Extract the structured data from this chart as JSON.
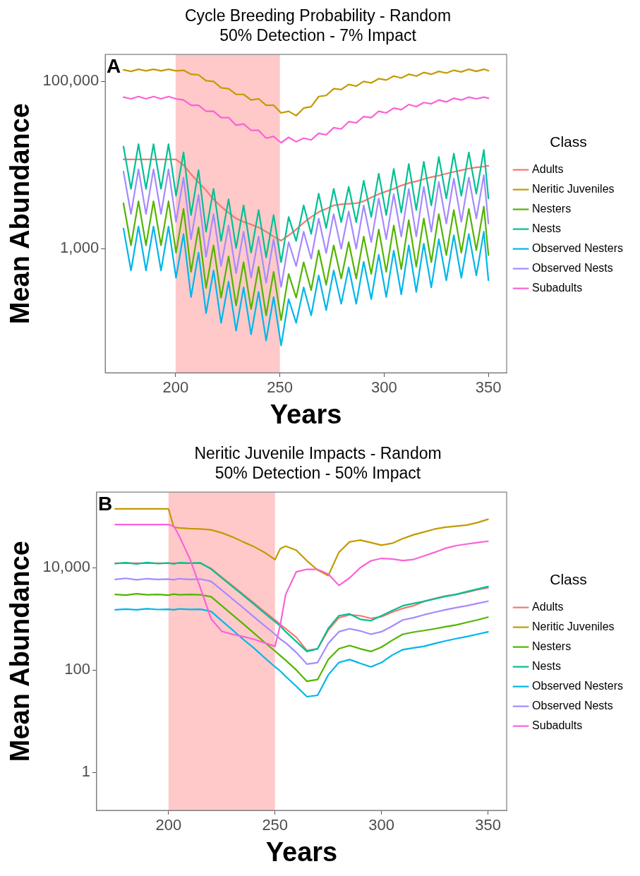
{
  "chart_data": [
    {
      "type": "line",
      "title": "Cycle Breeding Probability - Random",
      "subtitle": "50% Detection - 7% Impact",
      "xlabel": "Years",
      "ylabel": "Mean Abundance",
      "legend_title": "Class",
      "legend": "right",
      "log": "y",
      "marker": "none",
      "annotations": [
        "A"
      ],
      "xlim": [
        166.25,
        358.75
      ],
      "xticks": [
        200,
        250,
        300,
        350
      ],
      "ylim": [
        33,
        210000
      ],
      "yticks": [
        {
          "value": 1000,
          "label": "1,000"
        },
        {
          "value": 100000,
          "label": "100,000"
        }
      ],
      "bands": [
        {
          "axis": "x",
          "from": 200,
          "to": 250,
          "color": "#ffc9c9"
        }
      ],
      "x": [
        175,
        178.6,
        182.2,
        185.8,
        189.4,
        193,
        196.6,
        200.2,
        203.8,
        207.4,
        211,
        214.6,
        218.2,
        221.8,
        225.4,
        229,
        232.6,
        236.2,
        239.8,
        243.4,
        247,
        250.6,
        254.2,
        257.8,
        261.4,
        265,
        268.6,
        272.2,
        275.8,
        279.4,
        283,
        286.6,
        290.2,
        293.8,
        297.4,
        301,
        304.6,
        308.2,
        311.8,
        315.4,
        319,
        322.6,
        326.2,
        329.8,
        333.4,
        337,
        340.6,
        344.2,
        347.8,
        350
      ],
      "series": [
        {
          "name": "Adults",
          "color": "#f8766d",
          "values": [
            11700,
            11700,
            11700,
            11700,
            11700,
            11700,
            11700,
            11700,
            10000,
            7800,
            6200,
            5000,
            3900,
            3200,
            2700,
            2300,
            2100,
            1950,
            1800,
            1600,
            1400,
            1250,
            1450,
            1700,
            2050,
            2400,
            2750,
            3000,
            3300,
            3400,
            3450,
            3500,
            3700,
            4100,
            4500,
            4850,
            5200,
            5700,
            6100,
            6400,
            6800,
            7200,
            7500,
            7900,
            8300,
            8700,
            9100,
            9400,
            9600,
            9800
          ]
        },
        {
          "name": "Neritic Juveniles",
          "color": "#c49a00",
          "values": [
            138000,
            132000,
            140000,
            134000,
            140000,
            134000,
            140000,
            134000,
            136000,
            122000,
            120000,
            102000,
            100000,
            84000,
            82000,
            70000,
            70000,
            60000,
            62000,
            52000,
            52000,
            42000,
            44000,
            39000,
            48000,
            50000,
            66000,
            68000,
            82000,
            80000,
            92000,
            88000,
            100000,
            96000,
            108000,
            104000,
            116000,
            110000,
            122000,
            116000,
            128000,
            122000,
            132000,
            126000,
            136000,
            130000,
            140000,
            132000,
            140000,
            134000
          ]
        },
        {
          "name": "Nesters",
          "color": "#53b400",
          "values": [
            3500,
            1100,
            3700,
            1100,
            3700,
            1100,
            3700,
            900,
            3000,
            530,
            1800,
            340,
            1100,
            260,
            810,
            210,
            690,
            190,
            610,
            160,
            530,
            140,
            500,
            260,
            690,
            320,
            960,
            370,
            1100,
            440,
            1200,
            440,
            1400,
            500,
            1700,
            530,
            1900,
            570,
            2200,
            610,
            2300,
            690,
            2600,
            840,
            2900,
            900,
            3000,
            960,
            3200,
            840
          ]
        },
        {
          "name": "Nests",
          "color": "#00c094",
          "values": [
            16700,
            5200,
            17800,
            5200,
            17800,
            5200,
            17800,
            4300,
            14200,
            2530,
            8700,
            1600,
            5200,
            1240,
            3900,
            1020,
            3300,
            900,
            2900,
            790,
            2530,
            690,
            2400,
            1240,
            3300,
            1510,
            4550,
            1770,
            5200,
            2080,
            5500,
            2080,
            6500,
            2400,
            7900,
            2530,
            9000,
            2710,
            10300,
            2900,
            11000,
            3300,
            12500,
            4000,
            13700,
            4300,
            14200,
            4550,
            15200,
            4000
          ]
        },
        {
          "name": "Observed Nesters",
          "color": "#00b6eb",
          "values": [
            1750,
            550,
            1850,
            550,
            1850,
            550,
            1850,
            450,
            1500,
            265,
            900,
            170,
            550,
            130,
            405,
            105,
            345,
            95,
            305,
            80,
            265,
            70,
            250,
            130,
            345,
            160,
            480,
            185,
            550,
            220,
            600,
            220,
            700,
            250,
            850,
            265,
            950,
            285,
            1100,
            305,
            1150,
            345,
            1300,
            420,
            1450,
            450,
            1500,
            480,
            1600,
            420
          ]
        },
        {
          "name": "Observed Nests",
          "color": "#a58aff",
          "values": [
            8400,
            2600,
            8900,
            2600,
            8900,
            2600,
            8900,
            2100,
            7100,
            1300,
            4400,
            800,
            2600,
            620,
            1900,
            510,
            1600,
            450,
            1400,
            390,
            1300,
            350,
            1200,
            620,
            1600,
            760,
            2300,
            890,
            2600,
            1000,
            2800,
            1000,
            3300,
            1200,
            4000,
            1300,
            4500,
            1400,
            5200,
            1400,
            5500,
            1600,
            6300,
            2000,
            6900,
            2100,
            7100,
            2300,
            7600,
            2000
          ]
        },
        {
          "name": "Subadults",
          "color": "#fb61d7",
          "values": [
            65000,
            62000,
            66000,
            62000,
            66000,
            62000,
            66000,
            62000,
            60000,
            52000,
            52000,
            44000,
            44000,
            37000,
            37000,
            30000,
            31000,
            26000,
            26000,
            21000,
            22000,
            18500,
            21500,
            19000,
            21000,
            20000,
            24000,
            23000,
            28000,
            27000,
            33000,
            32000,
            38000,
            37000,
            44000,
            42000,
            48000,
            46000,
            53000,
            50000,
            56000,
            54000,
            60000,
            57000,
            63000,
            60000,
            65000,
            62000,
            65000,
            63000
          ]
        }
      ]
    },
    {
      "type": "line",
      "title": "Neritic Juvenile Impacts - Random",
      "subtitle": "50% Detection - 50% Impact",
      "xlabel": "Years",
      "ylabel": "Mean Abundance",
      "legend_title": "Class",
      "legend": "right",
      "log": "y",
      "marker": "none",
      "annotations": [
        "B"
      ],
      "xlim": [
        166.25,
        358.75
      ],
      "xticks": [
        200,
        250,
        300,
        350
      ],
      "ylim": [
        0.18,
        300000
      ],
      "yticks": [
        1,
        100,
        {
          "value": 10000,
          "label": "10,000"
        }
      ],
      "bands": [
        {
          "axis": "x",
          "from": 200,
          "to": 250,
          "color": "#ffc9c9"
        }
      ],
      "x": [
        175,
        180,
        185,
        190,
        195,
        200,
        202.5,
        205,
        210,
        215,
        220,
        225,
        230,
        235,
        240,
        245,
        250,
        252.5,
        255,
        260,
        265,
        270,
        275,
        280,
        285,
        290,
        295,
        300,
        305,
        310,
        315,
        320,
        325,
        330,
        335,
        340,
        345,
        350
      ],
      "series": [
        {
          "name": "Adults",
          "color": "#f8766d",
          "values": [
            12200,
            12200,
            12200,
            12200,
            12200,
            12200,
            12200,
            12200,
            12200,
            12200,
            9660,
            6560,
            4460,
            3030,
            2060,
            1390,
            945,
            780,
            640,
            435,
            240,
            260,
            600,
            1050,
            1200,
            1150,
            1020,
            1100,
            1350,
            1600,
            1800,
            2200,
            2500,
            2800,
            3000,
            3300,
            3700,
            4060
          ]
        },
        {
          "name": "Neritic Juveniles",
          "color": "#c49a00",
          "values": [
            141000,
            141000,
            141000,
            141000,
            141000,
            141000,
            62000,
            60000,
            58000,
            57000,
            55000,
            48000,
            40000,
            32000,
            26000,
            20000,
            14400,
            23600,
            26400,
            22000,
            13600,
            9000,
            7000,
            20000,
            32000,
            34600,
            31000,
            27500,
            30000,
            37000,
            44000,
            50000,
            57000,
            62000,
            65000,
            68000,
            76000,
            88500
          ]
        },
        {
          "name": "Nesters",
          "color": "#53b400",
          "values": [
            3000,
            2900,
            3100,
            2950,
            3000,
            2900,
            3050,
            2950,
            3000,
            2950,
            2700,
            1800,
            1200,
            800,
            530,
            350,
            235,
            190,
            155,
            100,
            60,
            65,
            160,
            260,
            300,
            260,
            230,
            280,
            380,
            500,
            550,
            590,
            640,
            700,
            760,
            850,
            950,
            1080
          ]
        },
        {
          "name": "Nests",
          "color": "#00c094",
          "values": [
            12000,
            12500,
            11800,
            12600,
            12000,
            12300,
            11800,
            12500,
            12200,
            12400,
            9400,
            6300,
            4300,
            2900,
            1950,
            1300,
            880,
            720,
            560,
            360,
            230,
            260,
            650,
            1150,
            1250,
            980,
            920,
            1150,
            1450,
            1800,
            2000,
            2200,
            2450,
            2750,
            3000,
            3400,
            3800,
            4280
          ]
        },
        {
          "name": "Observed Nesters",
          "color": "#00b6eb",
          "values": [
            1500,
            1550,
            1500,
            1580,
            1520,
            1540,
            1500,
            1560,
            1530,
            1540,
            1400,
            920,
            610,
            400,
            270,
            175,
            115,
            95,
            75,
            48,
            30,
            32,
            80,
            140,
            160,
            135,
            115,
            140,
            195,
            250,
            270,
            290,
            330,
            370,
            410,
            450,
            500,
            557
          ]
        },
        {
          "name": "Observed Nests",
          "color": "#a58aff",
          "values": [
            5900,
            6200,
            5800,
            6100,
            5900,
            6000,
            5800,
            6100,
            5900,
            6000,
            5400,
            3650,
            2450,
            1650,
            1100,
            740,
            500,
            400,
            340,
            220,
            130,
            140,
            330,
            560,
            640,
            580,
            500,
            560,
            720,
            950,
            1050,
            1200,
            1350,
            1500,
            1650,
            1800,
            2000,
            2210
          ]
        },
        {
          "name": "Subadults",
          "color": "#fb61d7",
          "values": [
            69500,
            69500,
            69500,
            69500,
            69500,
            69500,
            65000,
            42000,
            15000,
            4000,
            1000,
            570,
            500,
            450,
            400,
            340,
            290,
            775,
            3000,
            8300,
            9300,
            9250,
            7500,
            4500,
            6300,
            10000,
            13600,
            15200,
            14800,
            13800,
            14500,
            17000,
            20000,
            24000,
            27000,
            29000,
            31000,
            32900
          ]
        }
      ]
    }
  ]
}
